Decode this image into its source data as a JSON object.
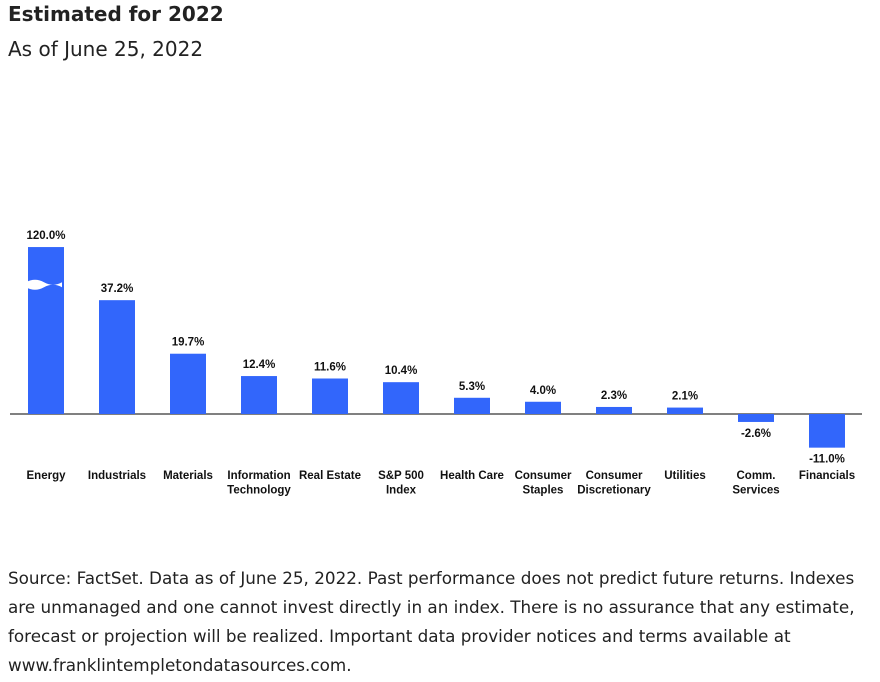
{
  "chart_data": {
    "type": "bar",
    "title": "Estimated for 2022",
    "subtitle": "As of June 25, 2022",
    "categories": [
      [
        "Energy"
      ],
      [
        "Industrials"
      ],
      [
        "Materials"
      ],
      [
        "Information",
        "Technology"
      ],
      [
        "Real Estate"
      ],
      [
        "S&P 500",
        "Index"
      ],
      [
        "Health Care"
      ],
      [
        "Consumer",
        "Staples"
      ],
      [
        "Consumer",
        "Discretionary"
      ],
      [
        "Utilities"
      ],
      [
        "Comm.",
        "Services"
      ],
      [
        "Financials"
      ]
    ],
    "values": [
      120,
      37.2,
      19.7,
      12.4,
      11.6,
      10.4,
      5.3,
      4.0,
      2.3,
      2.1,
      -2.6,
      -11.0
    ],
    "value_labels": [
      "120.0%",
      "37.2%",
      "19.7%",
      "12.4%",
      "11.6%",
      "10.4%",
      "5.3%",
      "4.0%",
      "2.3%",
      "2.1%",
      "-2.6%",
      "-11.0%"
    ],
    "color": "#3266fb",
    "source": "Source: FactSet. Data as of June 25, 2022. Past performance does not predict future returns. Indexes are unmanaged and one cannot invest directly in an index. There is no assurance that any estimate, forecast or projection will be realized. Important data provider notices and terms available at www.franklintempletondatasources.com."
  }
}
